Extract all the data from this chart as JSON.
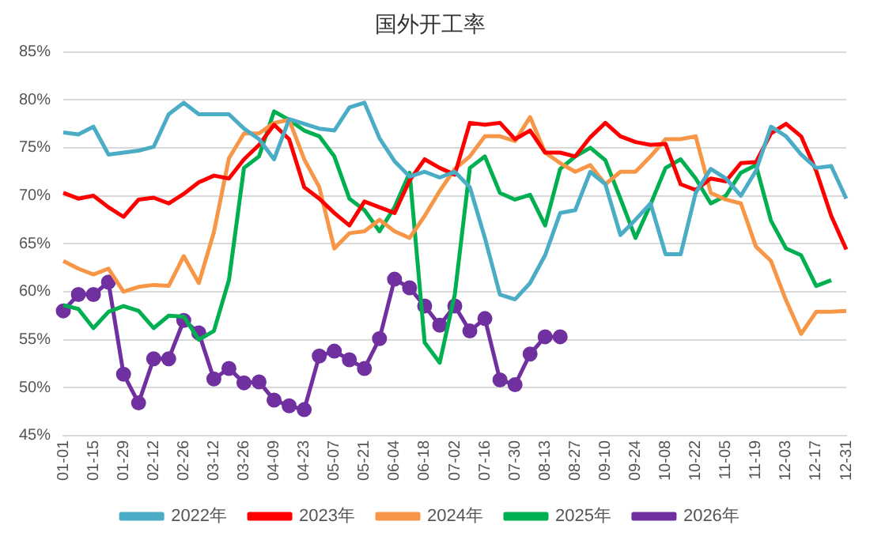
{
  "chart_data": {
    "type": "line",
    "title": "国外开工率",
    "categories": [
      "01-01",
      null,
      "01-15",
      null,
      "01-29",
      null,
      "02-12",
      null,
      "02-26",
      null,
      "03-12",
      null,
      "03-26",
      null,
      "04-09",
      null,
      "04-23",
      null,
      "05-07",
      null,
      "05-21",
      null,
      "06-04",
      null,
      "06-18",
      null,
      "07-02",
      null,
      "07-16",
      null,
      "07-30",
      null,
      "08-13",
      null,
      "08-27",
      null,
      "09-10",
      null,
      "09-24",
      null,
      "10-08",
      null,
      "10-22",
      null,
      "11-05",
      null,
      "11-19",
      null,
      "12-03",
      null,
      "12-17",
      null,
      "12-31"
    ],
    "ylim": [
      45,
      85
    ],
    "yticks": [
      {
        "value": 45,
        "label": "45%"
      },
      {
        "value": 50,
        "label": "50%"
      },
      {
        "value": 55,
        "label": "55%"
      },
      {
        "value": 60,
        "label": "60%"
      },
      {
        "value": 65,
        "label": "65%"
      },
      {
        "value": 70,
        "label": "70%"
      },
      {
        "value": 75,
        "label": "75%"
      },
      {
        "value": 80,
        "label": "80%"
      },
      {
        "value": 85,
        "label": "85%"
      }
    ],
    "grid": "y",
    "legend": "bottom",
    "series": [
      {
        "name": "2022年",
        "color": "#4bacc6",
        "marker": "none",
        "values": [
          76.6,
          76.4,
          77.2,
          74.3,
          74.5,
          74.7,
          75.1,
          78.5,
          79.7,
          78.5,
          78.5,
          78.5,
          77,
          75.9,
          73.8,
          78,
          77.5,
          77,
          76.8,
          79.2,
          79.7,
          76,
          73.6,
          72,
          72.5,
          71.9,
          72.5,
          70.9,
          65.6,
          59.7,
          59.2,
          60.9,
          63.8,
          68.2,
          68.5,
          72.5,
          71.2,
          65.9,
          67.5,
          69.2,
          63.9,
          63.9,
          70.3,
          72.8,
          71.8,
          70,
          72.6,
          77.2,
          76.2,
          74.3,
          72.9,
          73.1,
          69.7
        ]
      },
      {
        "name": "2023年",
        "color": "#ff0000",
        "marker": "none",
        "values": [
          70.3,
          69.7,
          70,
          68.8,
          67.8,
          69.6,
          69.8,
          69.2,
          70.2,
          71.4,
          72.1,
          71.8,
          73.8,
          75.3,
          77.4,
          75.9,
          70.9,
          69.7,
          68.2,
          66.9,
          69.4,
          68.8,
          68.2,
          71.6,
          73.8,
          72.9,
          72.2,
          77.6,
          77.4,
          77.6,
          75.9,
          76.8,
          74.5,
          74.5,
          74.1,
          76.1,
          77.6,
          76.2,
          75.6,
          75.3,
          75.4,
          71.2,
          70.6,
          71.8,
          71.5,
          73.4,
          73.5,
          76.5,
          77.5,
          76.2,
          72.6,
          67.9,
          64.4
        ]
      },
      {
        "name": "2024年",
        "color": "#f79646",
        "marker": "none",
        "values": [
          63.2,
          62.4,
          61.8,
          62.4,
          60,
          60.5,
          60.7,
          60.6,
          63.7,
          60.9,
          66.2,
          73.9,
          76.5,
          76.5,
          77.6,
          77.9,
          73.8,
          70.9,
          64.5,
          66.1,
          66.3,
          67.5,
          66.3,
          65.6,
          67.9,
          70.5,
          72.8,
          74.1,
          76.2,
          76.2,
          75.7,
          78.2,
          74.5,
          73.4,
          72.5,
          73.2,
          71.2,
          72.5,
          72.5,
          74.1,
          75.9,
          75.9,
          76.2,
          70.3,
          69.6,
          69.2,
          64.7,
          63.2,
          59.1,
          55.6,
          57.9,
          57.9,
          58
        ]
      },
      {
        "name": "2025年",
        "color": "#00b050",
        "marker": "none",
        "values": [
          58.6,
          58.2,
          56.2,
          57.9,
          58.5,
          58,
          56.2,
          57.5,
          57.4,
          55,
          55.9,
          61.2,
          72.9,
          74.1,
          78.8,
          77.9,
          76.8,
          76.2,
          74.1,
          69.7,
          68.5,
          66.3,
          68.8,
          72.4,
          54.7,
          52.6,
          59.7,
          72.9,
          74.1,
          70.3,
          69.6,
          70.1,
          66.9,
          72.8,
          74.1,
          75,
          73.7,
          69.7,
          65.6,
          69.1,
          72.9,
          73.8,
          71.8,
          69.2,
          70,
          72.4,
          73.2,
          67.4,
          64.5,
          63.8,
          60.6,
          61.2,
          null
        ]
      },
      {
        "name": "2026年",
        "color": "#7030a0",
        "marker": "circle",
        "values": [
          58,
          59.7,
          59.7,
          61,
          51.4,
          48.4,
          53,
          53,
          57,
          55.7,
          50.9,
          52,
          50.5,
          50.6,
          48.7,
          48.1,
          47.7,
          53.3,
          53.8,
          52.9,
          52,
          55.1,
          61.3,
          60.4,
          58.5,
          56.5,
          58.5,
          55.9,
          57.2,
          50.8,
          50.3,
          53.5,
          55.3,
          55.3,
          null,
          null,
          null,
          null,
          null,
          null,
          null,
          null,
          null,
          null,
          null,
          null,
          null,
          null,
          null,
          null,
          null,
          null,
          null
        ]
      }
    ]
  }
}
